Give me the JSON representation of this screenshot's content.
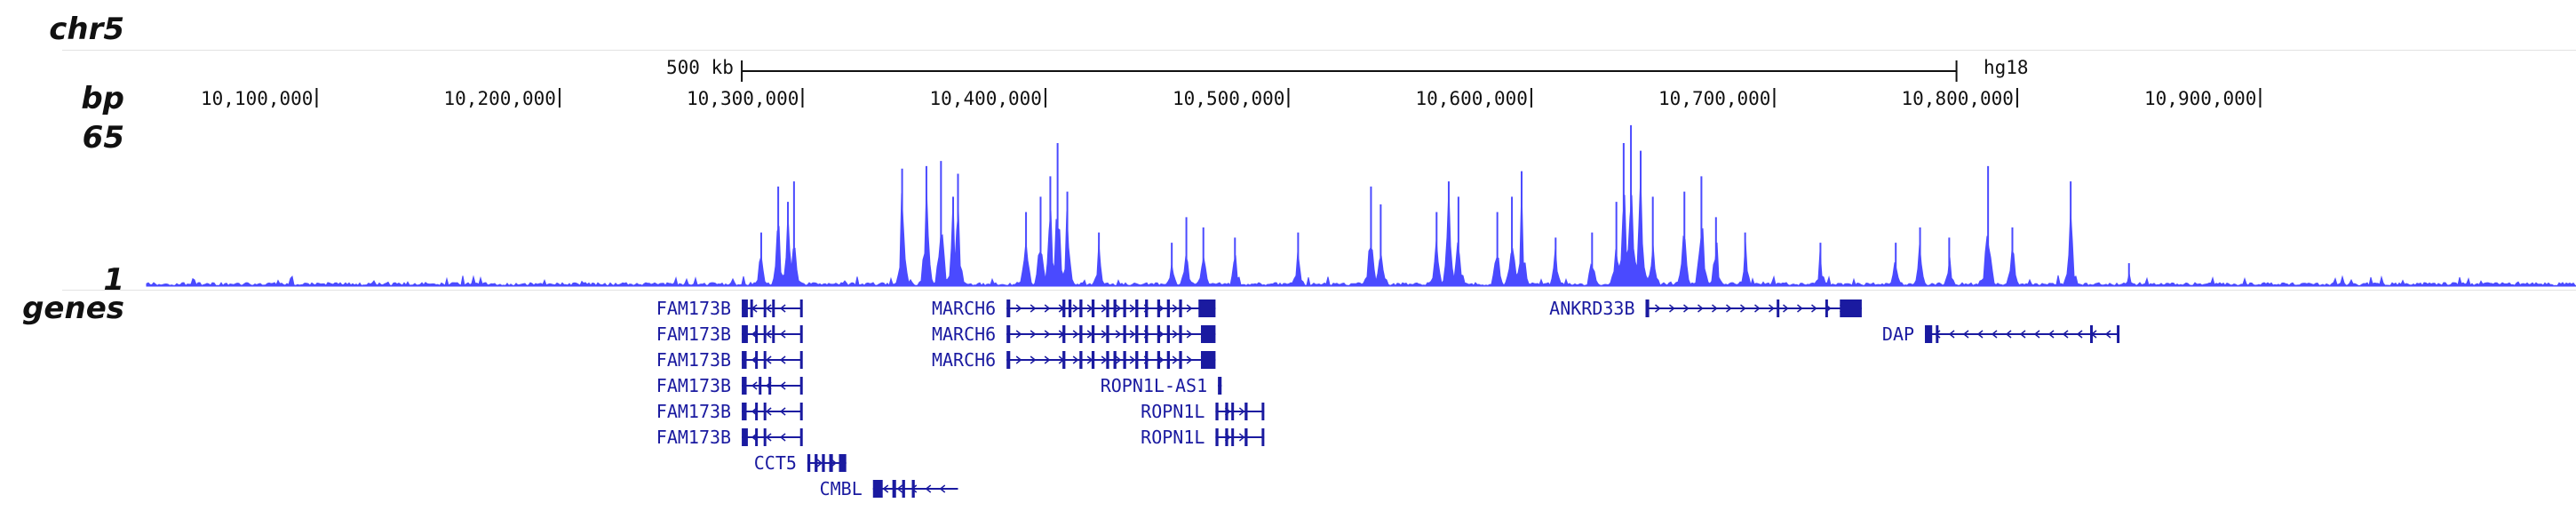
{
  "chrom": "chr5",
  "labels": {
    "bp": "bp",
    "max": "65",
    "min": "1",
    "genes": "genes"
  },
  "scale": {
    "size": "500 kb",
    "assembly": "hg18"
  },
  "ruler_ticks": [
    "10,100,000",
    "10,200,000",
    "10,300,000",
    "10,400,000",
    "10,500,000",
    "10,600,000",
    "10,700,000",
    "10,800,000",
    "10,900,000"
  ],
  "colors": {
    "signal": "#4a4aff",
    "gene": "#1a1aa0",
    "text": "#111111"
  },
  "chart_data": {
    "type": "area",
    "ylim": [
      1,
      65
    ],
    "xlim": [
      10030000,
      11030000
    ],
    "peaks": [
      {
        "x": 10283000,
        "y": 22
      },
      {
        "x": 10290000,
        "y": 40
      },
      {
        "x": 10294000,
        "y": 34
      },
      {
        "x": 10296500,
        "y": 42
      },
      {
        "x": 10341000,
        "y": 47
      },
      {
        "x": 10351000,
        "y": 48
      },
      {
        "x": 10357000,
        "y": 50
      },
      {
        "x": 10362000,
        "y": 36
      },
      {
        "x": 10364000,
        "y": 45
      },
      {
        "x": 10392000,
        "y": 30
      },
      {
        "x": 10398000,
        "y": 36
      },
      {
        "x": 10402000,
        "y": 44
      },
      {
        "x": 10405000,
        "y": 57
      },
      {
        "x": 10409000,
        "y": 38
      },
      {
        "x": 10422000,
        "y": 22
      },
      {
        "x": 10452000,
        "y": 18
      },
      {
        "x": 10458000,
        "y": 28
      },
      {
        "x": 10465000,
        "y": 24
      },
      {
        "x": 10478000,
        "y": 20
      },
      {
        "x": 10504000,
        "y": 22
      },
      {
        "x": 10534000,
        "y": 40
      },
      {
        "x": 10538000,
        "y": 33
      },
      {
        "x": 10561000,
        "y": 30
      },
      {
        "x": 10566000,
        "y": 42
      },
      {
        "x": 10570000,
        "y": 36
      },
      {
        "x": 10586000,
        "y": 30
      },
      {
        "x": 10592000,
        "y": 36
      },
      {
        "x": 10596000,
        "y": 46
      },
      {
        "x": 10610000,
        "y": 20
      },
      {
        "x": 10625000,
        "y": 22
      },
      {
        "x": 10635000,
        "y": 34
      },
      {
        "x": 10638000,
        "y": 57
      },
      {
        "x": 10641000,
        "y": 64
      },
      {
        "x": 10645000,
        "y": 54
      },
      {
        "x": 10650000,
        "y": 36
      },
      {
        "x": 10663000,
        "y": 38
      },
      {
        "x": 10670000,
        "y": 44
      },
      {
        "x": 10676000,
        "y": 28
      },
      {
        "x": 10688000,
        "y": 22
      },
      {
        "x": 10719000,
        "y": 18
      },
      {
        "x": 10750000,
        "y": 18
      },
      {
        "x": 10760000,
        "y": 24
      },
      {
        "x": 10772000,
        "y": 20
      },
      {
        "x": 10788000,
        "y": 48
      },
      {
        "x": 10798000,
        "y": 24
      },
      {
        "x": 10822000,
        "y": 42
      },
      {
        "x": 10846000,
        "y": 10
      }
    ]
  },
  "genes": [
    {
      "name": "FAM173B",
      "start": 10275000,
      "end": 10300000,
      "strand": "-",
      "row": 0,
      "exons": [
        [
          10275000,
          10277500
        ],
        [
          10278500,
          10279500
        ],
        [
          10284000,
          10285000
        ],
        [
          10287500,
          10288200
        ],
        [
          10299000,
          10300000
        ]
      ]
    },
    {
      "name": "FAM173B",
      "start": 10275000,
      "end": 10300000,
      "strand": "-",
      "row": 1,
      "exons": [
        [
          10275000,
          10277500
        ],
        [
          10280500,
          10281500
        ],
        [
          10284000,
          10285000
        ],
        [
          10287500,
          10288200
        ],
        [
          10299000,
          10300000
        ]
      ]
    },
    {
      "name": "FAM173B",
      "start": 10275000,
      "end": 10300000,
      "strand": "-",
      "row": 2,
      "exons": [
        [
          10275000,
          10277000
        ],
        [
          10280500,
          10281500
        ],
        [
          10284000,
          10285000
        ],
        [
          10299000,
          10300000
        ]
      ]
    },
    {
      "name": "FAM173B",
      "start": 10275000,
      "end": 10300000,
      "strand": "-",
      "row": 3,
      "exons": [
        [
          10275000,
          10277000
        ],
        [
          10282000,
          10283000
        ],
        [
          10286000,
          10287000
        ],
        [
          10299000,
          10300000
        ]
      ]
    },
    {
      "name": "FAM173B",
      "start": 10275000,
      "end": 10300000,
      "strand": "-",
      "row": 4,
      "exons": [
        [
          10275000,
          10277000
        ],
        [
          10280500,
          10281500
        ],
        [
          10284000,
          10285000
        ],
        [
          10299000,
          10300000
        ]
      ]
    },
    {
      "name": "FAM173B",
      "start": 10275000,
      "end": 10300000,
      "strand": "-",
      "row": 5,
      "exons": [
        [
          10275000,
          10277500
        ],
        [
          10280500,
          10281500
        ],
        [
          10284000,
          10285000
        ],
        [
          10299000,
          10300000
        ]
      ]
    },
    {
      "name": "CCT5",
      "start": 10302000,
      "end": 10318000,
      "strand": "+",
      "row": 6,
      "exons": [
        [
          10302000,
          10303200
        ],
        [
          10305000,
          10306200
        ],
        [
          10308000,
          10309200
        ],
        [
          10311000,
          10312500
        ],
        [
          10315000,
          10318000
        ]
      ]
    },
    {
      "name": "CMBL",
      "start": 10329000,
      "end": 10364000,
      "strand": "-",
      "row": 7,
      "exons": [
        [
          10329000,
          10333000
        ],
        [
          10337000,
          10338500
        ],
        [
          10341000,
          10342200
        ],
        [
          10345000,
          10346200
        ]
      ]
    },
    {
      "name": "MARCH6",
      "start": 10384000,
      "end": 10470000,
      "strand": "+",
      "row": 0,
      "exons": [
        [
          10384000,
          10385500
        ],
        [
          10407000,
          10408200
        ],
        [
          10409500,
          10410700
        ],
        [
          10414000,
          10415200
        ],
        [
          10419000,
          10420200
        ],
        [
          10425000,
          10426200
        ],
        [
          10428000,
          10429200
        ],
        [
          10432000,
          10433200
        ],
        [
          10437000,
          10438200
        ],
        [
          10441000,
          10442200
        ],
        [
          10446000,
          10447200
        ],
        [
          10450000,
          10451200
        ],
        [
          10455000,
          10456200
        ],
        [
          10463000,
          10470000
        ]
      ]
    },
    {
      "name": "MARCH6",
      "start": 10384000,
      "end": 10470000,
      "strand": "+",
      "row": 1,
      "exons": [
        [
          10384000,
          10385500
        ],
        [
          10407000,
          10408200
        ],
        [
          10414000,
          10415200
        ],
        [
          10419000,
          10420200
        ],
        [
          10425000,
          10426200
        ],
        [
          10432000,
          10433200
        ],
        [
          10437000,
          10438200
        ],
        [
          10441000,
          10442200
        ],
        [
          10446000,
          10447200
        ],
        [
          10450000,
          10451200
        ],
        [
          10455000,
          10456200
        ],
        [
          10464000,
          10470000
        ]
      ]
    },
    {
      "name": "MARCH6",
      "start": 10384000,
      "end": 10470000,
      "strand": "+",
      "row": 2,
      "exons": [
        [
          10384000,
          10385500
        ],
        [
          10407000,
          10408200
        ],
        [
          10414000,
          10415200
        ],
        [
          10419000,
          10420200
        ],
        [
          10425000,
          10426200
        ],
        [
          10428000,
          10429200
        ],
        [
          10432000,
          10433200
        ],
        [
          10437000,
          10438200
        ],
        [
          10441000,
          10442200
        ],
        [
          10446000,
          10447200
        ],
        [
          10450000,
          10451200
        ],
        [
          10455000,
          10456200
        ],
        [
          10464000,
          10470000
        ]
      ]
    },
    {
      "name": "ROPN1L-AS1",
      "start": 10471000,
      "end": 10472500,
      "strand": "+",
      "row": 3,
      "exons": [
        [
          10471000,
          10472500
        ]
      ]
    },
    {
      "name": "ROPN1L",
      "start": 10470000,
      "end": 10490000,
      "strand": "+",
      "row": 4,
      "exons": [
        [
          10470000,
          10471200
        ],
        [
          10474000,
          10475200
        ],
        [
          10476500,
          10477500
        ],
        [
          10482000,
          10483200
        ],
        [
          10489000,
          10490000
        ]
      ]
    },
    {
      "name": "ROPN1L",
      "start": 10470000,
      "end": 10490000,
      "strand": "+",
      "row": 5,
      "exons": [
        [
          10470000,
          10471200
        ],
        [
          10474000,
          10475200
        ],
        [
          10476500,
          10477500
        ],
        [
          10482000,
          10483200
        ],
        [
          10489000,
          10490000
        ]
      ]
    },
    {
      "name": "ANKRD33B",
      "start": 10647000,
      "end": 10736000,
      "strand": "+",
      "row": 0,
      "exons": [
        [
          10647000,
          10648500
        ],
        [
          10701000,
          10702000
        ],
        [
          10721000,
          10722000
        ],
        [
          10727000,
          10736000
        ]
      ]
    },
    {
      "name": "DAP",
      "start": 10762000,
      "end": 10842000,
      "strand": "-",
      "row": 1,
      "exons": [
        [
          10762000,
          10765000
        ],
        [
          10766500,
          10767500
        ],
        [
          10830000,
          10831000
        ],
        [
          10841000,
          10842000
        ]
      ]
    }
  ]
}
